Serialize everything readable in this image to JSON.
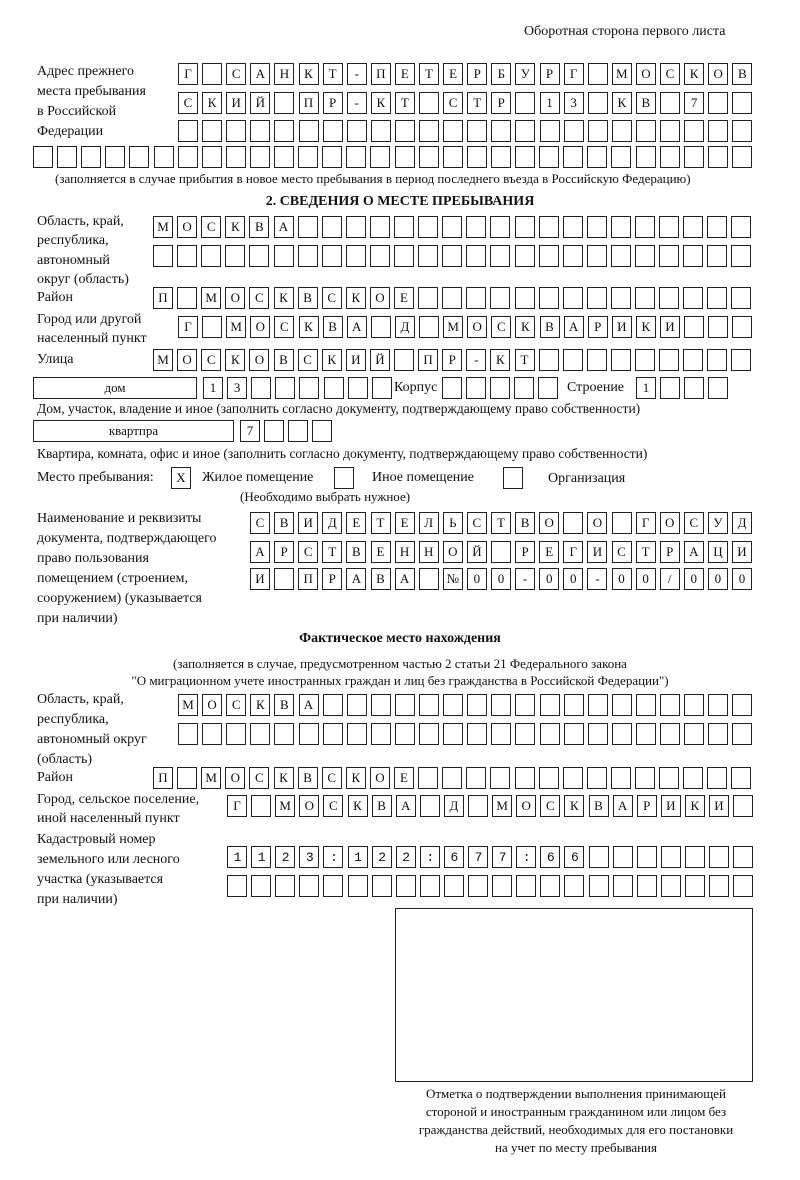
{
  "header": {
    "page_side": "Оборотная сторона первого листа"
  },
  "previous_address": {
    "label": [
      "Адрес прежнего",
      "места пребывания",
      "в Российской",
      "Федерации"
    ],
    "rows": [
      "Г САНКТ-ПЕТЕРБУРГ МОСКОВ",
      "СКИЙ ПР-КТ СТР 13 КВ 7",
      "",
      ""
    ],
    "note": "(заполняется в случае прибытия в новое место пребывания в период последнего въезда в Российскую Федерацию)"
  },
  "section2": {
    "title": "2. СВЕДЕНИЯ О МЕСТЕ ПРЕБЫВАНИЯ",
    "region_label": [
      "Область, край,",
      "республика,",
      "автономный",
      "округ (область)"
    ],
    "region_rows": [
      "МОСКВА",
      ""
    ],
    "district_label": "Район",
    "district": "П МОСКВСКОЕ",
    "city_label": [
      "Город или другой",
      "населенный пункт"
    ],
    "city": "Г МОСКВА Д МОСКВАРИКИ",
    "street_label": "Улица",
    "street": "МОСКОВСКИЙ ПР-КТ",
    "house_type": "дом",
    "house_number": "13",
    "korpus_label": "Корпус",
    "korpus": "",
    "building_label": "Строение",
    "building": "1",
    "house_note": "Дом, участок, владение и иное (заполнить согласно документу, подтверждающему право собственности)",
    "apartment_type": "квартпра",
    "apartment_number": "7",
    "apartment_note": "Квартира, комната, офис и иное (заполнить согласно документу, подтверждающему право собственности)",
    "place_label": "Место пребывания:",
    "place_options": [
      {
        "label": "Жилое помещение",
        "mark": "X"
      },
      {
        "label": "Иное помещение",
        "mark": ""
      },
      {
        "label": "Организация",
        "mark": ""
      }
    ],
    "place_note": "(Необходимо выбрать нужное)",
    "document_label": [
      "Наименование и реквизиты",
      "документа, подтверждающего",
      "право пользования",
      "помещением (строением,",
      "сооружением) (указывается",
      "при наличии)"
    ],
    "document_rows": [
      "СВИДЕТЕЛЬСТВО О ГОСУД",
      "АРСТВЕННОЙ РЕГИСТРАЦИ",
      "И ПРАВА №00-00-00/000"
    ]
  },
  "actual_location": {
    "title": "Фактическое место нахождения",
    "note": [
      "(заполняется в случае, предусмотренном частью 2 статьи 21 Федерального закона",
      "\"О миграционном учете иностранных граждан и лиц без гражданства в Российской Федерации\")"
    ],
    "region_label": [
      "Область, край,",
      "республика,",
      "автономный округ",
      "(область)"
    ],
    "region_rows": [
      "МОСКВА",
      ""
    ],
    "district_label": "Район",
    "district": "П МОСКВСКОЕ",
    "city_label": [
      "Город, сельское поселение,",
      "иной населенный пункт"
    ],
    "city": "Г МОСКВА Д МОСКВАРИКИ",
    "cadastral_label": [
      "Кадастровый номер",
      "земельного или лесного",
      "участка (указывается",
      "при наличии)"
    ],
    "cadastral_rows": [
      "1123:122:677:66",
      ""
    ]
  },
  "confirmation": {
    "caption": [
      "Отметка о подтверждении выполнения принимающей",
      "стороной и иностранным гражданином или лицом без",
      "гражданства действий, необходимых для его постановки",
      "на учет по месту пребывания"
    ]
  }
}
